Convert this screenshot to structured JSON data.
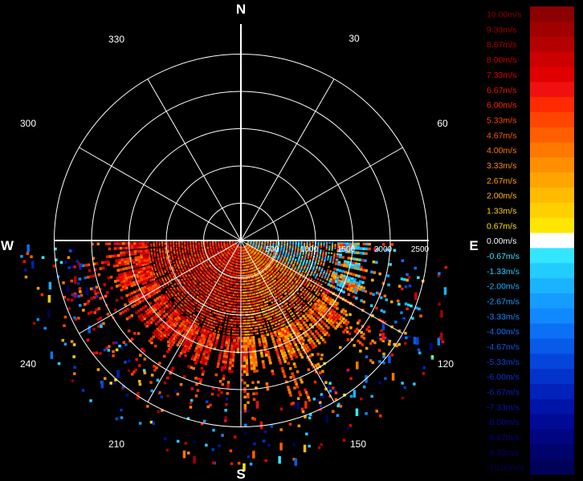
{
  "display": {
    "cardinals": {
      "north": "N",
      "south": "S",
      "east": "E",
      "west": "W"
    },
    "azimuth_labels": [
      "30",
      "60",
      "120",
      "150",
      "210",
      "240",
      "300",
      "330"
    ],
    "range_labels": [
      "500",
      "1000",
      "1500",
      "2000",
      "2500"
    ],
    "ring_colour": "#ffffff",
    "background_colour": "#000000"
  },
  "legend": {
    "entries": [
      {
        "label": "10.00m/s",
        "color": "#8b0000"
      },
      {
        "label": "9.33m/s",
        "color": "#a00000"
      },
      {
        "label": "8.67m/s",
        "color": "#b50000"
      },
      {
        "label": "8.00m/s",
        "color": "#cc0000"
      },
      {
        "label": "7.33m/s",
        "color": "#e00000"
      },
      {
        "label": "6.67m/s",
        "color": "#f01010"
      },
      {
        "label": "6.00m/s",
        "color": "#ff2a00"
      },
      {
        "label": "5.33m/s",
        "color": "#ff4500"
      },
      {
        "label": "4.67m/s",
        "color": "#ff5e00"
      },
      {
        "label": "4.00m/s",
        "color": "#ff7800"
      },
      {
        "label": "3.33m/s",
        "color": "#ff8f00"
      },
      {
        "label": "2.67m/s",
        "color": "#ffa500"
      },
      {
        "label": "2.00m/s",
        "color": "#ffbb00"
      },
      {
        "label": "1.33m/s",
        "color": "#ffd000"
      },
      {
        "label": "0.67m/s",
        "color": "#ffe600"
      },
      {
        "label": "0.00m/s",
        "color": "#ffffff"
      },
      {
        "label": "-0.67m/s",
        "color": "#33e6ff"
      },
      {
        "label": "-1.33m/s",
        "color": "#22ccff"
      },
      {
        "label": "-2.00m/s",
        "color": "#1ab3ff"
      },
      {
        "label": "-2.67m/s",
        "color": "#159cff"
      },
      {
        "label": "-3.33m/s",
        "color": "#1088ff"
      },
      {
        "label": "-4.00m/s",
        "color": "#0c70f5"
      },
      {
        "label": "-4.67m/s",
        "color": "#085ae8"
      },
      {
        "label": "-5.33m/s",
        "color": "#0645dc"
      },
      {
        "label": "-6.00m/s",
        "color": "#0433cc"
      },
      {
        "label": "-6.67m/s",
        "color": "#0222bb"
      },
      {
        "label": "-7.33m/s",
        "color": "#0014a8"
      },
      {
        "label": "-8.00m/s",
        "color": "#000a95"
      },
      {
        "label": "-8.67m/s",
        "color": "#000580"
      },
      {
        "label": "-9.33m/s",
        "color": "#00036c"
      },
      {
        "label": "-10.00m/s",
        "color": "#000258"
      }
    ]
  }
}
